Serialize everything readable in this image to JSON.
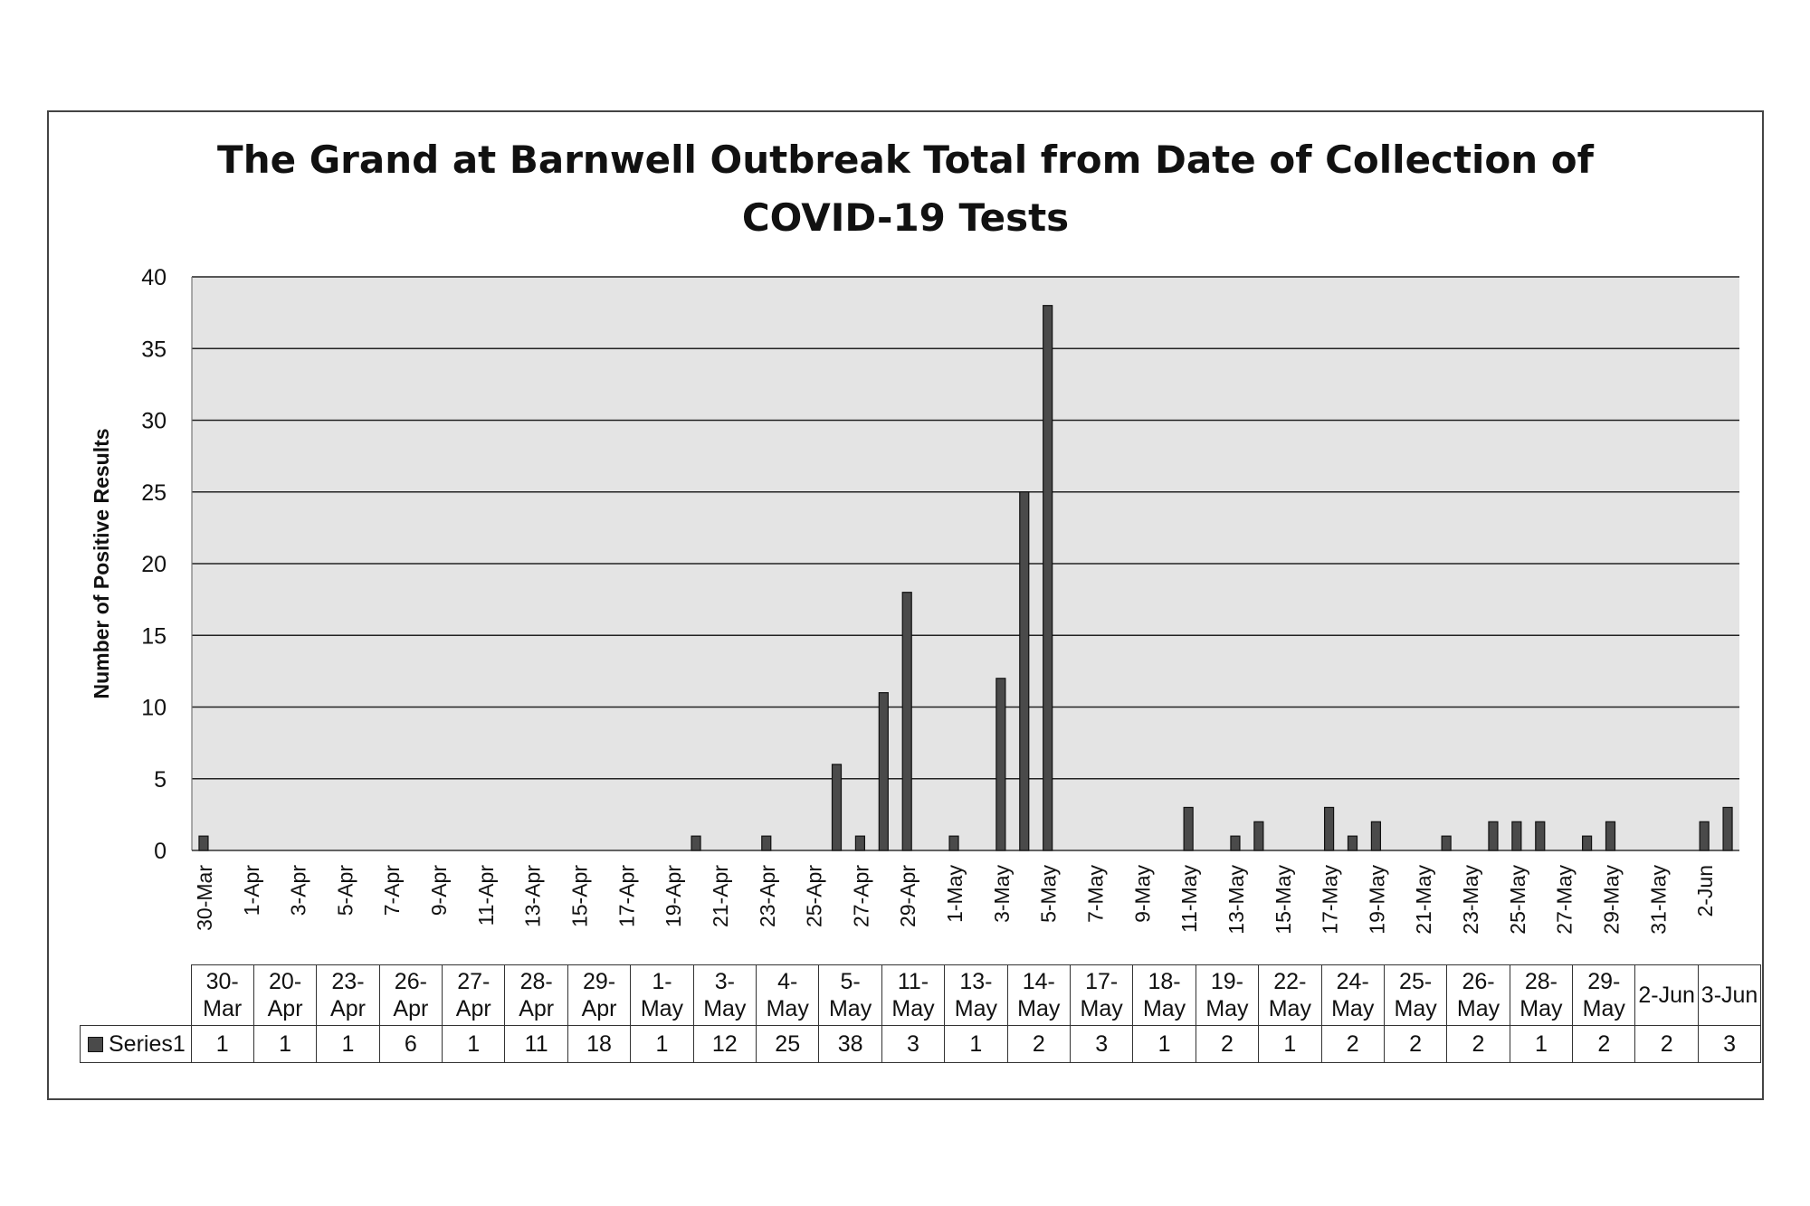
{
  "chart_data": {
    "type": "bar",
    "title": "The Grand at Barnwell Outbreak Total from Date of Collection of COVID-19 Tests",
    "title_lines": [
      "The Grand at Barnwell Outbreak Total from Date of Collection of",
      "COVID-19 Tests"
    ],
    "xlabel": "",
    "ylabel": "Number of Positive Results",
    "ylim": [
      0,
      40
    ],
    "y_ticks": [
      0,
      5,
      10,
      15,
      20,
      25,
      30,
      35,
      40
    ],
    "grid": true,
    "x_tick_labels": [
      "30-Mar",
      "1-Apr",
      "3-Apr",
      "5-Apr",
      "7-Apr",
      "9-Apr",
      "11-Apr",
      "13-Apr",
      "15-Apr",
      "17-Apr",
      "19-Apr",
      "21-Apr",
      "23-Apr",
      "25-Apr",
      "27-Apr",
      "29-Apr",
      "1-May",
      "3-May",
      "5-May",
      "7-May",
      "9-May",
      "11-May",
      "13-May",
      "15-May",
      "17-May",
      "19-May",
      "21-May",
      "23-May",
      "25-May",
      "27-May",
      "29-May",
      "31-May",
      "2-Jun"
    ],
    "x_range": [
      "2020-03-30",
      "2020-06-03"
    ],
    "categories": [
      "30-Mar",
      "20-Apr",
      "23-Apr",
      "26-Apr",
      "27-Apr",
      "28-Apr",
      "29-Apr",
      "1-May",
      "3-May",
      "4-May",
      "5-May",
      "11-May",
      "13-May",
      "14-May",
      "17-May",
      "18-May",
      "19-May",
      "22-May",
      "24-May",
      "25-May",
      "26-May",
      "28-May",
      "29-May",
      "2-Jun",
      "3-Jun"
    ],
    "dates": [
      "2020-03-30",
      "2020-04-20",
      "2020-04-23",
      "2020-04-26",
      "2020-04-27",
      "2020-04-28",
      "2020-04-29",
      "2020-05-01",
      "2020-05-03",
      "2020-05-04",
      "2020-05-05",
      "2020-05-11",
      "2020-05-13",
      "2020-05-14",
      "2020-05-17",
      "2020-05-18",
      "2020-05-19",
      "2020-05-22",
      "2020-05-24",
      "2020-05-25",
      "2020-05-26",
      "2020-05-28",
      "2020-05-29",
      "2020-06-02",
      "2020-06-03"
    ],
    "series": [
      {
        "name": "Series1",
        "values": [
          1,
          1,
          1,
          6,
          1,
          11,
          18,
          1,
          12,
          25,
          38,
          3,
          1,
          2,
          3,
          1,
          2,
          1,
          2,
          2,
          2,
          1,
          2,
          2,
          3
        ]
      }
    ],
    "table": {
      "header_lines": [
        [
          "30-",
          "Mar"
        ],
        [
          "20-",
          "Apr"
        ],
        [
          "23-",
          "Apr"
        ],
        [
          "26-",
          "Apr"
        ],
        [
          "27-",
          "Apr"
        ],
        [
          "28-",
          "Apr"
        ],
        [
          "29-",
          "Apr"
        ],
        [
          "1-",
          "May"
        ],
        [
          "3-",
          "May"
        ],
        [
          "4-",
          "May"
        ],
        [
          "5-",
          "May"
        ],
        [
          "11-",
          "May"
        ],
        [
          "13-",
          "May"
        ],
        [
          "14-",
          "May"
        ],
        [
          "17-",
          "May"
        ],
        [
          "18-",
          "May"
        ],
        [
          "19-",
          "May"
        ],
        [
          "22-",
          "May"
        ],
        [
          "24-",
          "May"
        ],
        [
          "25-",
          "May"
        ],
        [
          "26-",
          "May"
        ],
        [
          "28-",
          "May"
        ],
        [
          "29-",
          "May"
        ],
        [
          "2-Jun"
        ],
        [
          "3-Jun"
        ]
      ]
    },
    "bar_color": "#4a4a4a",
    "plot_background": "#e4e4e4",
    "gridline_color": "#222222"
  }
}
